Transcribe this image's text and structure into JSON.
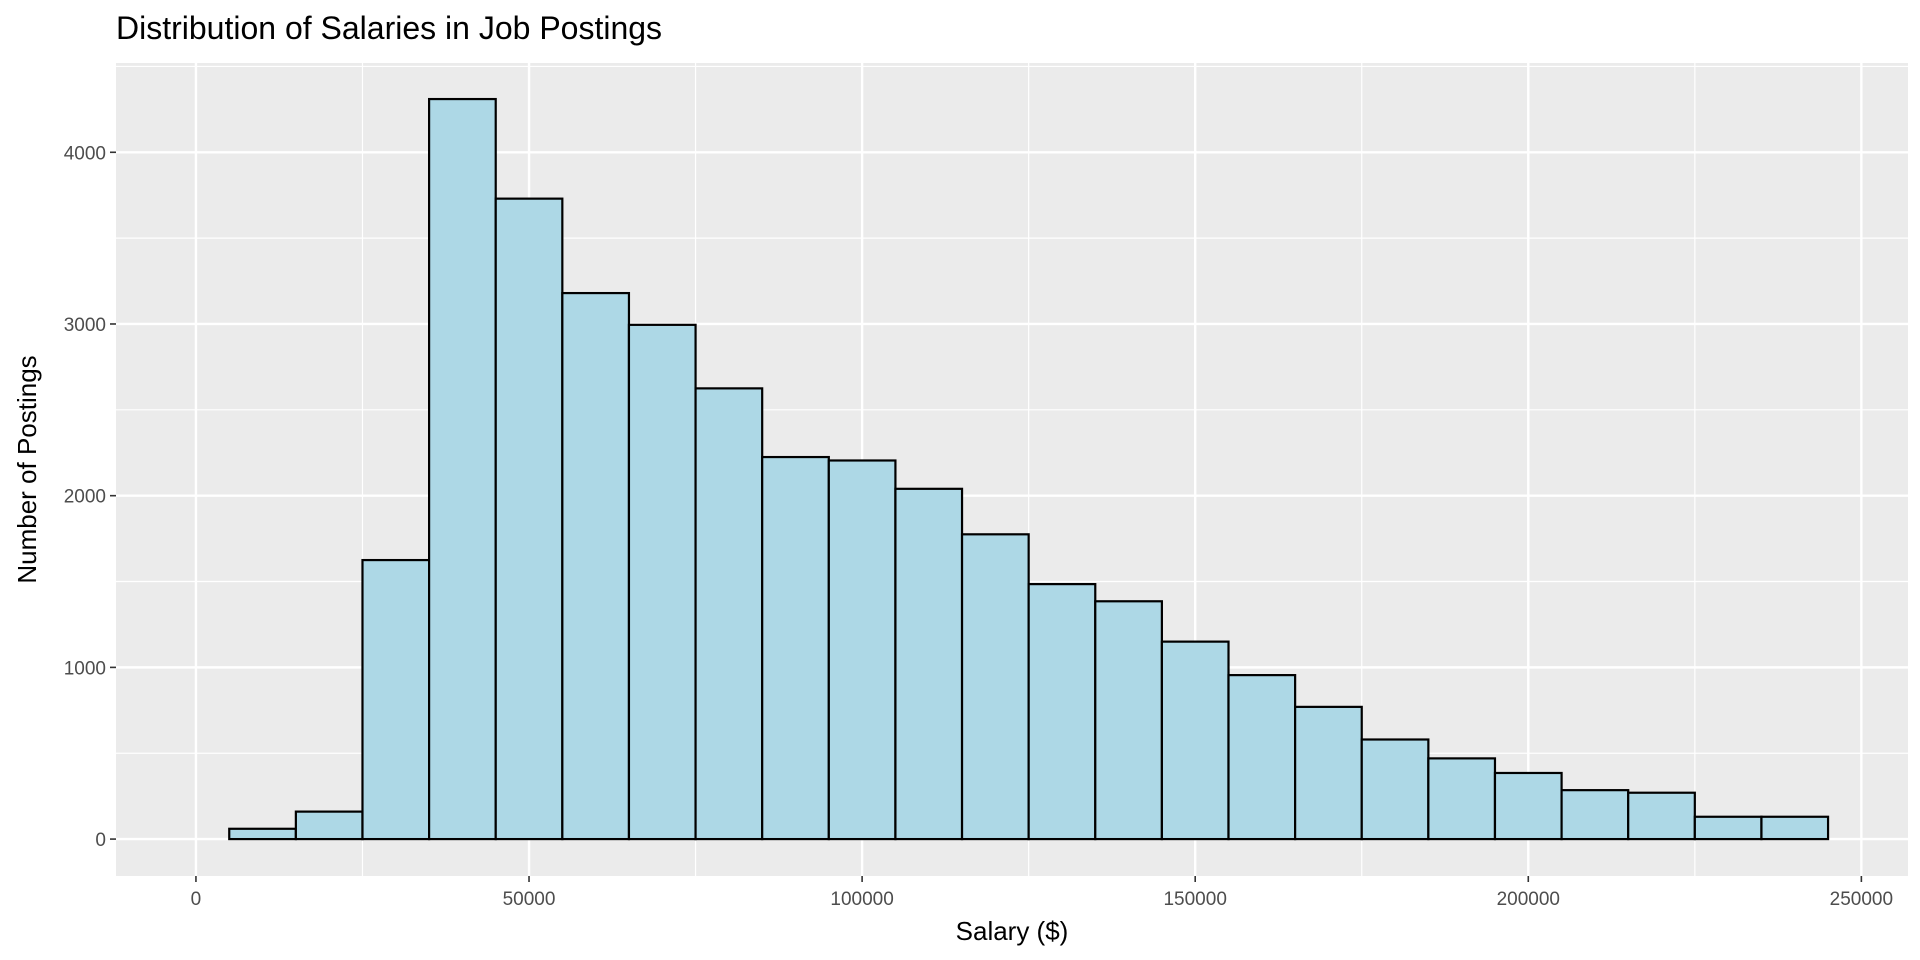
{
  "chart_data": {
    "type": "bar",
    "title": "Distribution of Salaries in Job Postings",
    "xlabel": "Salary ($)",
    "ylabel": "Number of Postings",
    "xlim": [
      -12000,
      257000
    ],
    "ylim": [
      -215,
      4520
    ],
    "x_ticks": [
      0,
      50000,
      100000,
      150000,
      200000,
      250000
    ],
    "y_ticks": [
      0,
      1000,
      2000,
      3000,
      4000
    ],
    "grid": true,
    "bin_width": 10000,
    "bins": [
      {
        "start": 5000,
        "end": 15000,
        "count": 60
      },
      {
        "start": 15000,
        "end": 25000,
        "count": 160
      },
      {
        "start": 25000,
        "end": 35000,
        "count": 1625
      },
      {
        "start": 35000,
        "end": 45000,
        "count": 4310
      },
      {
        "start": 45000,
        "end": 55000,
        "count": 3730
      },
      {
        "start": 55000,
        "end": 65000,
        "count": 3180
      },
      {
        "start": 65000,
        "end": 75000,
        "count": 2995
      },
      {
        "start": 75000,
        "end": 85000,
        "count": 2625
      },
      {
        "start": 85000,
        "end": 95000,
        "count": 2225
      },
      {
        "start": 95000,
        "end": 105000,
        "count": 2205
      },
      {
        "start": 105000,
        "end": 115000,
        "count": 2040
      },
      {
        "start": 115000,
        "end": 125000,
        "count": 1775
      },
      {
        "start": 125000,
        "end": 135000,
        "count": 1485
      },
      {
        "start": 135000,
        "end": 145000,
        "count": 1385
      },
      {
        "start": 145000,
        "end": 155000,
        "count": 1150
      },
      {
        "start": 155000,
        "end": 165000,
        "count": 955
      },
      {
        "start": 165000,
        "end": 175000,
        "count": 770
      },
      {
        "start": 175000,
        "end": 185000,
        "count": 580
      },
      {
        "start": 185000,
        "end": 195000,
        "count": 470
      },
      {
        "start": 195000,
        "end": 205000,
        "count": 385
      },
      {
        "start": 205000,
        "end": 215000,
        "count": 285
      },
      {
        "start": 215000,
        "end": 225000,
        "count": 270
      },
      {
        "start": 225000,
        "end": 235000,
        "count": 130
      },
      {
        "start": 235000,
        "end": 245000,
        "count": 130
      }
    ],
    "colors": {
      "bar_fill": "#add8e6",
      "bar_stroke": "#000000",
      "panel_background": "#ebebeb",
      "grid_line": "#ffffff"
    }
  }
}
